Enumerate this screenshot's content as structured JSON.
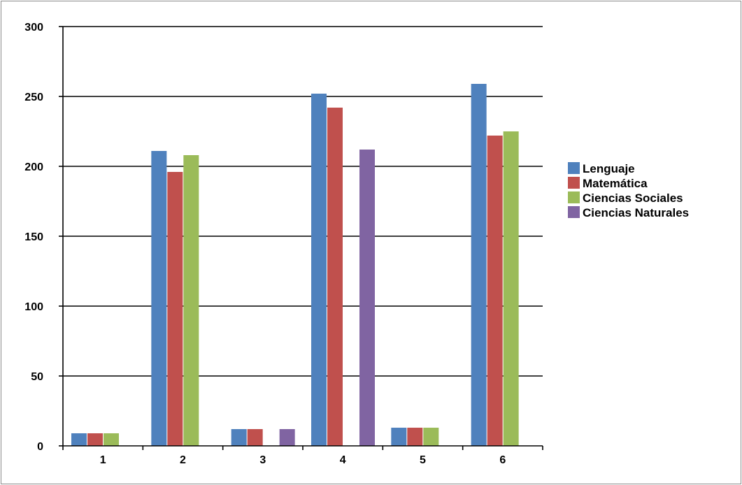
{
  "chart_data": {
    "type": "bar",
    "categories": [
      "1",
      "2",
      "3",
      "4",
      "5",
      "6"
    ],
    "series": [
      {
        "name": "Lenguaje",
        "color": "#4F81BD",
        "values": [
          9,
          211,
          12,
          252,
          13,
          259
        ]
      },
      {
        "name": "Matemática",
        "color": "#C0504D",
        "values": [
          9,
          196,
          12,
          242,
          13,
          222
        ]
      },
      {
        "name": "Ciencias Sociales",
        "color": "#9BBB59",
        "values": [
          9,
          208,
          0,
          0,
          13,
          225
        ]
      },
      {
        "name": "Ciencias Naturales",
        "color": "#8064A2",
        "values": [
          0,
          0,
          12,
          212,
          0,
          0
        ]
      }
    ],
    "ylim": [
      0,
      300
    ],
    "yticks": [
      0,
      50,
      100,
      150,
      200,
      250,
      300
    ],
    "grid": true,
    "legend_position": "right",
    "title": "",
    "xlabel": "",
    "ylabel": ""
  }
}
